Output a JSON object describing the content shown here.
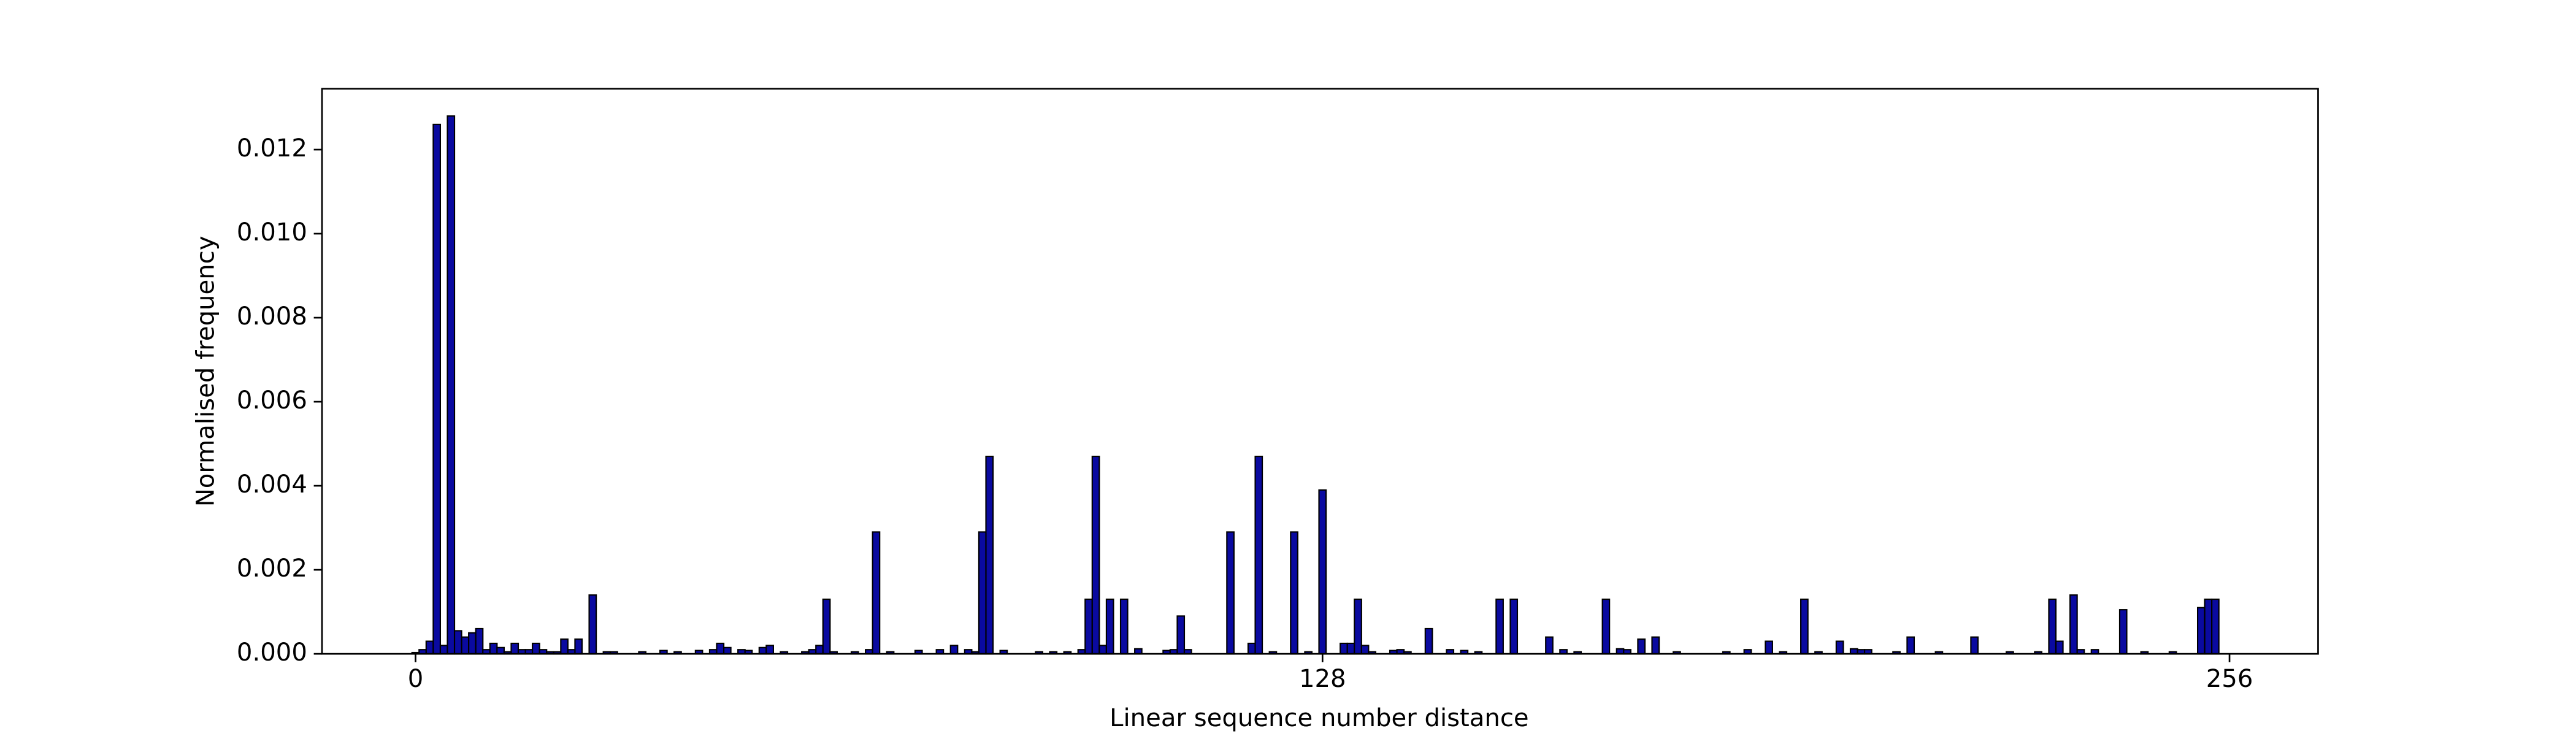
{
  "chart_data": {
    "type": "bar",
    "xlabel": "Linear sequence number distance",
    "ylabel": "Normalised frequency",
    "color": "#0a0aa0",
    "edgecolor": "#000000",
    "x": [
      0,
      1,
      2,
      3,
      4,
      5,
      6,
      7,
      8,
      9,
      10,
      11,
      12,
      13,
      14,
      15,
      16,
      17,
      18,
      19,
      20,
      21,
      22,
      23,
      25,
      27,
      28,
      32,
      35,
      37,
      40,
      42,
      43,
      44,
      46,
      47,
      49,
      50,
      52,
      55,
      56,
      57,
      58,
      59,
      62,
      64,
      65,
      67,
      71,
      74,
      76,
      78,
      79,
      80,
      81,
      83,
      88,
      90,
      92,
      94,
      95,
      96,
      97,
      98,
      100,
      102,
      106,
      107,
      108,
      109,
      115,
      118,
      119,
      121,
      124,
      126,
      128,
      131,
      132,
      133,
      134,
      135,
      138,
      139,
      140,
      143,
      146,
      148,
      150,
      153,
      155,
      160,
      162,
      164,
      168,
      170,
      171,
      173,
      175,
      178,
      185,
      188,
      191,
      193,
      196,
      198,
      201,
      203,
      204,
      205,
      209,
      211,
      215,
      220,
      225,
      229,
      231,
      232,
      234,
      235,
      237,
      241,
      244,
      248,
      252,
      253,
      254
    ],
    "values": [
      3e-05,
      0.0001,
      0.0003,
      0.0126,
      0.0002,
      0.0128,
      0.00055,
      0.0004,
      0.0005,
      0.0006,
      0.0001,
      0.00025,
      0.00015,
      5e-05,
      0.00025,
      0.0001,
      0.0001,
      0.00025,
      0.0001,
      5e-05,
      5e-05,
      0.00035,
      0.0001,
      0.00035,
      0.0014,
      5e-05,
      5e-05,
      5e-05,
      8e-05,
      5e-05,
      8e-05,
      0.0001,
      0.00025,
      0.00015,
      0.0001,
      8e-05,
      0.00015,
      0.0002,
      5e-05,
      5e-05,
      0.0001,
      0.0002,
      0.0013,
      5e-05,
      5e-05,
      0.0001,
      0.0029,
      5e-05,
      8e-05,
      0.0001,
      0.0002,
      0.0001,
      5e-05,
      0.0029,
      0.0047,
      8e-05,
      5e-05,
      5e-05,
      5e-05,
      0.0001,
      0.0013,
      0.0047,
      0.0002,
      0.0013,
      0.0013,
      0.00012,
      8e-05,
      0.0001,
      0.0009,
      0.0001,
      0.0029,
      0.00025,
      0.0047,
      5e-05,
      0.0029,
      5e-05,
      0.0039,
      0.00025,
      0.00025,
      0.0013,
      0.0002,
      5e-05,
      8e-05,
      0.0001,
      5e-05,
      0.0006,
      0.0001,
      8e-05,
      5e-05,
      0.0013,
      0.0013,
      0.0004,
      0.0001,
      5e-05,
      0.0013,
      0.00012,
      0.0001,
      0.00035,
      0.0004,
      5e-05,
      5e-05,
      0.0001,
      0.0003,
      5e-05,
      0.0013,
      5e-05,
      0.0003,
      0.00012,
      0.0001,
      0.0001,
      5e-05,
      0.0004,
      5e-05,
      0.0004,
      5e-05,
      5e-05,
      0.0013,
      0.0003,
      0.0014,
      0.0001,
      0.0001,
      0.00105,
      5e-05,
      5e-05,
      0.0011,
      0.0013,
      0.0013
    ],
    "xlim": [
      -13.2,
      268.5
    ],
    "xticks": [
      0,
      128,
      256
    ],
    "ylim": [
      0,
      0.01345
    ],
    "yticks": [
      {
        "value": 0,
        "label": "0.000"
      },
      0.002,
      0.004,
      0.006,
      0.008,
      {
        "value": 0.01,
        "label": "0.010"
      },
      0.012
    ]
  }
}
